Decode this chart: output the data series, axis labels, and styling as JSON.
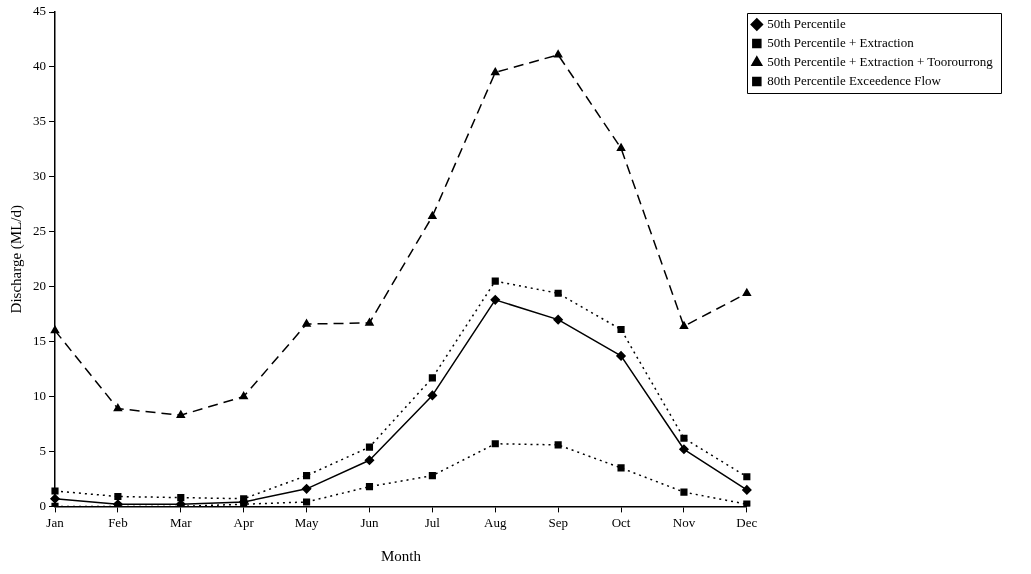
{
  "chart_data": {
    "type": "line",
    "xlabel": "Month",
    "ylabel": "Discharge (ML/d)",
    "categories": [
      "Jan",
      "Feb",
      "Mar",
      "Apr",
      "May",
      "Jun",
      "Jul",
      "Aug",
      "Sep",
      "Oct",
      "Nov",
      "Dec"
    ],
    "series": [
      {
        "name": "50th Percentile",
        "color": "#000000",
        "marker": "diamond",
        "line_style": "solid",
        "values": [
          0.7,
          0.2,
          0.2,
          0.4,
          1.6,
          4.2,
          10.1,
          18.8,
          17.0,
          13.7,
          5.2,
          1.5
        ]
      },
      {
        "name": "50th Percentile + Extraction",
        "color": "#000000",
        "marker": "square",
        "line_style": "dotted",
        "values": [
          1.4,
          0.9,
          0.8,
          0.7,
          2.8,
          5.4,
          11.7,
          20.5,
          19.4,
          16.1,
          6.2,
          2.7
        ]
      },
      {
        "name": "50th Percentile + Extraction + Toorourrong",
        "color": "#000000",
        "marker": "triangle",
        "line_style": "dashed",
        "values": [
          16.0,
          8.9,
          8.3,
          10.0,
          16.6,
          16.7,
          26.4,
          39.5,
          41.1,
          32.6,
          16.4,
          19.4
        ]
      },
      {
        "name": "80th Percentile Exceedence Flow",
        "color": "#000000",
        "marker": "square",
        "line_style": "dotted",
        "values": [
          0.0,
          0.0,
          0.0,
          0.2,
          0.4,
          1.8,
          2.8,
          5.7,
          5.6,
          3.5,
          1.3,
          0.2
        ]
      }
    ],
    "ylim": [
      0,
      45
    ],
    "yticks": [
      0,
      5,
      10,
      15,
      20,
      25,
      30,
      35,
      40,
      45
    ],
    "grid": false,
    "legend": "right"
  }
}
